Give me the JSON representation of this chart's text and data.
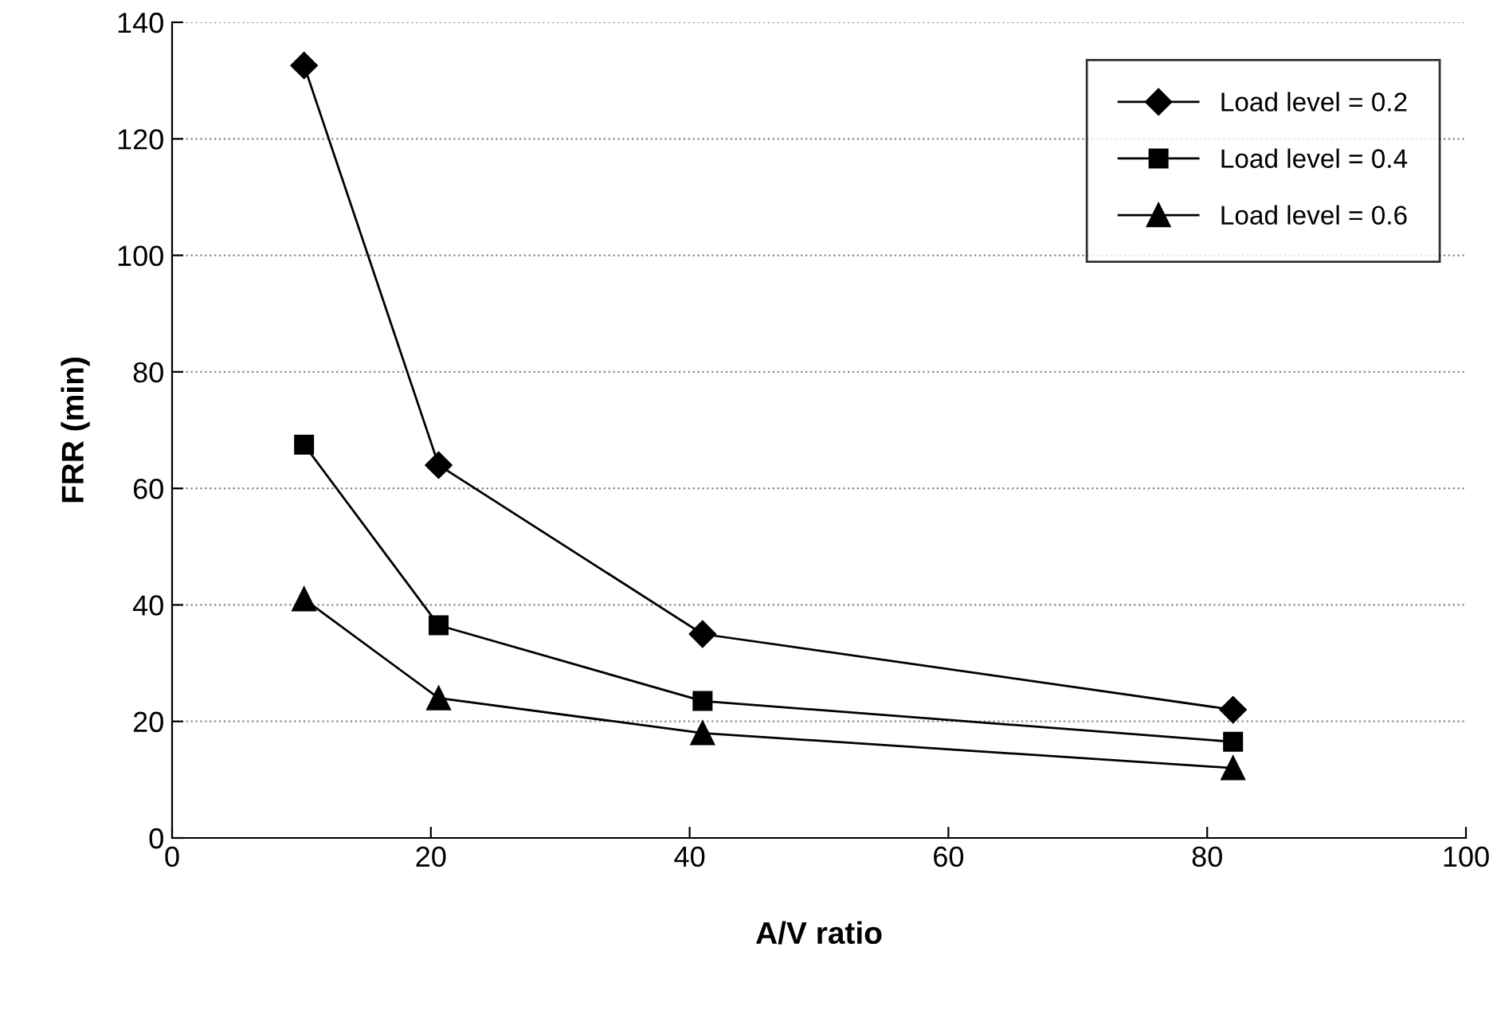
{
  "chart_data": {
    "type": "line",
    "xlabel": "A/V ratio",
    "ylabel": "FRR (min)",
    "x": [
      10.2,
      20.6,
      41,
      82
    ],
    "series": [
      {
        "name": "Load level = 0.2",
        "color": "#000000",
        "marker": "diamond",
        "values": [
          132.6,
          64,
          35,
          22
        ]
      },
      {
        "name": "Load level = 0.4",
        "color": "#000000",
        "marker": "square",
        "values": [
          67.5,
          36.5,
          23.5,
          16.5
        ]
      },
      {
        "name": "Load level = 0.6",
        "color": "#000000",
        "marker": "triangle",
        "values": [
          41,
          24,
          18,
          12
        ]
      }
    ],
    "xlim": [
      0,
      100
    ],
    "xticks": [
      0,
      20,
      40,
      60,
      80,
      100
    ],
    "ylim": [
      0,
      140
    ],
    "yticks": [
      0,
      20,
      40,
      60,
      80,
      100,
      120,
      140
    ],
    "grid": "y",
    "legend": "top right",
    "line_style": "solid"
  }
}
